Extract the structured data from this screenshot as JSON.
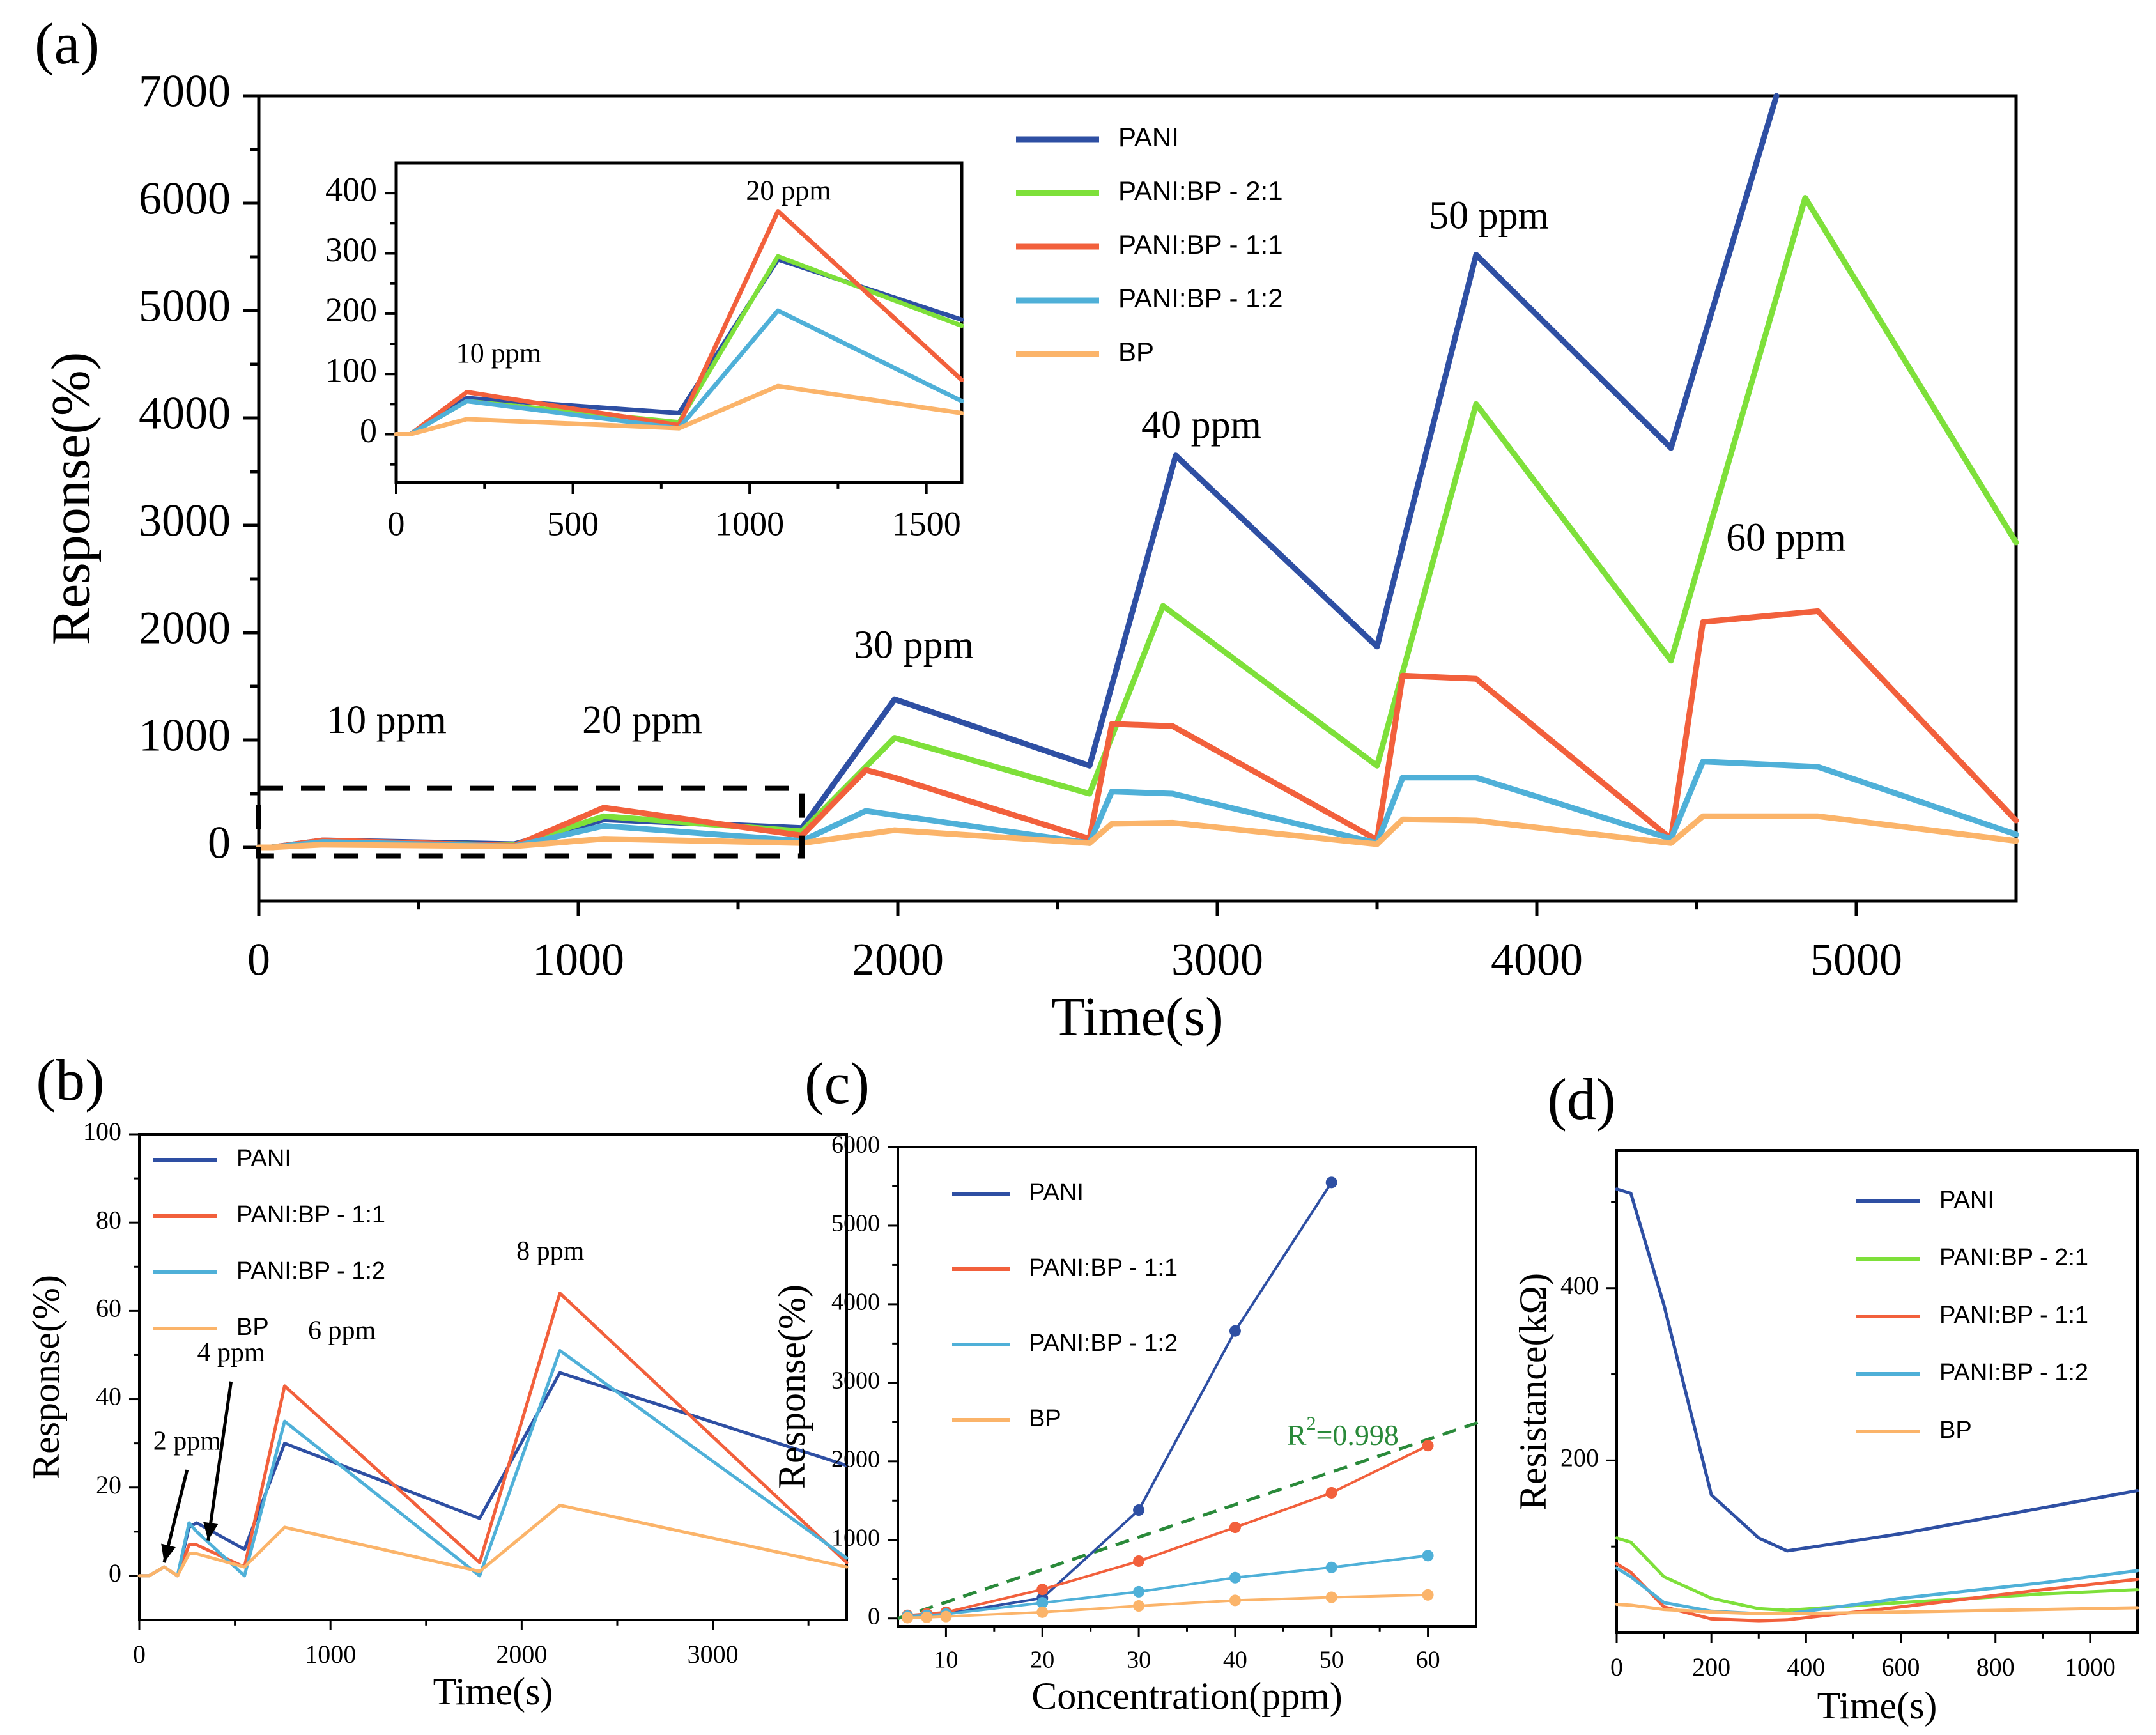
{
  "colors": {
    "PANI": "#2e4fa3",
    "PANI:BP - 2:1": "#7ee03a",
    "PANI:BP - 1:1": "#f2603c",
    "PANI:BP - 1:2": "#4fb0d8",
    "BP": "#fbb46a",
    "fit": "#2a8a3a"
  },
  "chart_data": [
    {
      "id": "a",
      "panel_label": "(a)",
      "type": "line",
      "xlabel": "Time(s)",
      "ylabel": "Response(%)",
      "xlim": [
        0,
        5500
      ],
      "ylim": [
        -500,
        7000
      ],
      "xticks": [
        0,
        1000,
        2000,
        3000,
        4000,
        5000
      ],
      "yticks": [
        0,
        1000,
        2000,
        3000,
        4000,
        5000,
        6000,
        7000
      ],
      "legend": [
        "PANI",
        "PANI:BP - 2:1",
        "PANI:BP - 1:1",
        "PANI:BP - 1:2",
        "BP"
      ],
      "legend_position": "top-center",
      "annotations": [
        {
          "text": "10 ppm",
          "x": 400,
          "y": 1150
        },
        {
          "text": "20 ppm",
          "x": 1200,
          "y": 1150
        },
        {
          "text": "30 ppm",
          "x": 2050,
          "y": 1850
        },
        {
          "text": "40 ppm",
          "x": 2950,
          "y": 3900
        },
        {
          "text": "50 ppm",
          "x": 3850,
          "y": 5850
        },
        {
          "text": "60 ppm",
          "x": 4780,
          "y": 2850
        }
      ],
      "series": [
        {
          "name": "PANI",
          "x": [
            0,
            40,
            200,
            800,
            1080,
            1700,
            1990,
            2600,
            2870,
            3500,
            3810,
            4420,
            4750
          ],
          "y": [
            0,
            0,
            65,
            30,
            260,
            180,
            1380,
            760,
            3650,
            1870,
            5520,
            3720,
            7000
          ]
        },
        {
          "name": "PANI:BP - 2:1",
          "x": [
            0,
            40,
            200,
            800,
            1080,
            1700,
            1990,
            2600,
            2830,
            3500,
            3810,
            4420,
            4840,
            5500
          ],
          "y": [
            0,
            0,
            55,
            20,
            290,
            150,
            1020,
            500,
            2250,
            760,
            4130,
            1740,
            6050,
            2840
          ]
        },
        {
          "name": "PANI:BP - 1:1",
          "x": [
            0,
            40,
            200,
            800,
            1080,
            1700,
            1900,
            1990,
            2600,
            2670,
            2860,
            3500,
            3580,
            3810,
            4420,
            4520,
            4880,
            5500
          ],
          "y": [
            0,
            0,
            65,
            15,
            370,
            110,
            720,
            650,
            80,
            1150,
            1130,
            70,
            1600,
            1570,
            80,
            2100,
            2200,
            250
          ]
        },
        {
          "name": "PANI:BP - 1:2",
          "x": [
            0,
            40,
            200,
            800,
            1080,
            1700,
            1900,
            1990,
            2600,
            2670,
            2860,
            3500,
            3580,
            3810,
            4420,
            4520,
            4880,
            5500
          ],
          "y": [
            0,
            0,
            50,
            10,
            200,
            60,
            340,
            300,
            40,
            520,
            500,
            40,
            650,
            650,
            80,
            800,
            750,
            120
          ]
        },
        {
          "name": "BP",
          "x": [
            0,
            40,
            200,
            800,
            1080,
            1700,
            1990,
            2600,
            2670,
            2860,
            3500,
            3580,
            3810,
            4420,
            4520,
            4880,
            5500
          ],
          "y": [
            0,
            0,
            25,
            10,
            80,
            40,
            160,
            40,
            220,
            230,
            30,
            260,
            250,
            40,
            290,
            290,
            60
          ]
        }
      ],
      "dashed_box": {
        "x": [
          0,
          1700
        ],
        "y": [
          -80,
          550
        ]
      }
    },
    {
      "id": "a-inset",
      "type": "line",
      "xlim": [
        0,
        1600
      ],
      "ylim": [
        -80,
        450
      ],
      "xticks": [
        0,
        500,
        1000,
        1500
      ],
      "yticks": [
        0,
        100,
        200,
        300,
        400
      ],
      "annotations": [
        {
          "text": "10 ppm",
          "x": 290,
          "y": 130
        },
        {
          "text": "20 ppm",
          "x": 1110,
          "y": 400
        }
      ],
      "series": [
        {
          "name": "PANI",
          "x": [
            0,
            40,
            200,
            800,
            1080,
            1600
          ],
          "y": [
            0,
            0,
            60,
            35,
            290,
            190
          ]
        },
        {
          "name": "PANI:BP - 2:1",
          "x": [
            0,
            40,
            200,
            800,
            1080,
            1600
          ],
          "y": [
            0,
            0,
            55,
            20,
            295,
            180
          ]
        },
        {
          "name": "PANI:BP - 1:1",
          "x": [
            0,
            40,
            200,
            800,
            1080,
            1600
          ],
          "y": [
            0,
            0,
            70,
            15,
            370,
            90
          ]
        },
        {
          "name": "PANI:BP - 1:2",
          "x": [
            0,
            40,
            200,
            800,
            1080,
            1600
          ],
          "y": [
            0,
            0,
            55,
            10,
            205,
            55
          ]
        },
        {
          "name": "BP",
          "x": [
            0,
            40,
            200,
            800,
            1080,
            1600
          ],
          "y": [
            0,
            0,
            25,
            10,
            80,
            35
          ]
        }
      ]
    },
    {
      "id": "b",
      "panel_label": "(b)",
      "type": "line",
      "xlabel": "Time(s)",
      "ylabel": "Response(%)",
      "xlim": [
        0,
        3700
      ],
      "ylim": [
        -10,
        100
      ],
      "xticks": [
        0,
        1000,
        2000,
        3000
      ],
      "yticks": [
        0,
        20,
        40,
        60,
        80,
        100
      ],
      "legend": [
        "PANI",
        "PANI:BP - 1:1",
        "PANI:BP - 1:2",
        "BP"
      ],
      "legend_position": "top-left",
      "annotations": [
        {
          "text": "2 ppm",
          "x": 250,
          "y": 30
        },
        {
          "text": "4 ppm",
          "x": 480,
          "y": 50
        },
        {
          "text": "6 ppm",
          "x": 1060,
          "y": 55
        },
        {
          "text": "8 ppm",
          "x": 2150,
          "y": 73
        }
      ],
      "series": [
        {
          "name": "PANI",
          "x": [
            0,
            50,
            130,
            200,
            260,
            300,
            550,
            760,
            1780,
            2200,
            3700
          ],
          "y": [
            0,
            0,
            2,
            0,
            11,
            12,
            6,
            30,
            13,
            46,
            25
          ]
        },
        {
          "name": "PANI:BP - 1:1",
          "x": [
            0,
            50,
            130,
            200,
            260,
            300,
            550,
            760,
            1780,
            2200,
            3700
          ],
          "y": [
            0,
            0,
            2,
            0,
            7,
            7,
            2,
            43,
            3,
            64,
            3
          ]
        },
        {
          "name": "PANI:BP - 1:2",
          "x": [
            0,
            50,
            130,
            200,
            260,
            300,
            550,
            760,
            1780,
            2200,
            3700
          ],
          "y": [
            0,
            0,
            2,
            0,
            12,
            10,
            0,
            35,
            0,
            51,
            4
          ]
        },
        {
          "name": "BP",
          "x": [
            0,
            50,
            130,
            200,
            260,
            300,
            550,
            760,
            1780,
            2200,
            3700
          ],
          "y": [
            0,
            0,
            2,
            0,
            5,
            5,
            2,
            11,
            1,
            16,
            2
          ]
        }
      ]
    },
    {
      "id": "c",
      "panel_label": "(c)",
      "type": "scatter",
      "xlabel": "Concentration(ppm)",
      "ylabel": "Response(%)",
      "xlim": [
        5,
        65
      ],
      "ylim": [
        -100,
        6000
      ],
      "xticks": [
        10,
        20,
        30,
        40,
        50,
        60
      ],
      "yticks": [
        0,
        1000,
        2000,
        3000,
        4000,
        5000,
        6000
      ],
      "legend": [
        "PANI",
        "PANI:BP - 1:1",
        "PANI:BP - 1:2",
        "BP"
      ],
      "legend_position": "top-left",
      "annotations": [
        {
          "text": "R",
          "sup": "2",
          "rest": "=0.998",
          "x": 50,
          "y": 2300
        }
      ],
      "fit": {
        "x": [
          5,
          65
        ],
        "y": [
          0,
          2500
        ]
      },
      "series": [
        {
          "name": "PANI",
          "x": [
            6,
            8,
            10,
            20,
            30,
            40,
            50
          ],
          "y": [
            30,
            45,
            60,
            260,
            1380,
            3660,
            5550
          ]
        },
        {
          "name": "PANI:BP - 1:1",
          "x": [
            6,
            8,
            10,
            20,
            30,
            40,
            50,
            60
          ],
          "y": [
            40,
            60,
            80,
            370,
            730,
            1160,
            1600,
            2200
          ]
        },
        {
          "name": "PANI:BP - 1:2",
          "x": [
            6,
            8,
            10,
            20,
            30,
            40,
            50,
            60
          ],
          "y": [
            30,
            40,
            55,
            200,
            340,
            520,
            650,
            800
          ]
        },
        {
          "name": "BP",
          "x": [
            6,
            8,
            10,
            20,
            30,
            40,
            50,
            60
          ],
          "y": [
            10,
            15,
            25,
            80,
            160,
            230,
            270,
            300
          ]
        }
      ]
    },
    {
      "id": "d",
      "panel_label": "(d)",
      "type": "line",
      "xlabel": "Time(s)",
      "ylabel": "Resistance(kΩ)",
      "xlim": [
        0,
        1100
      ],
      "ylim": [
        0,
        560
      ],
      "xticks": [
        0,
        200,
        400,
        600,
        800,
        1000
      ],
      "yticks": [
        200,
        400
      ],
      "legend": [
        "PANI",
        "PANI:BP - 2:1",
        "PANI:BP - 1:1",
        "PANI:BP - 1:2",
        "BP"
      ],
      "legend_position": "top-right",
      "series": [
        {
          "name": "PANI",
          "x": [
            0,
            30,
            100,
            200,
            300,
            360,
            600,
            900,
            1100
          ],
          "y": [
            515,
            510,
            380,
            160,
            110,
            95,
            115,
            145,
            165
          ]
        },
        {
          "name": "PANI:BP - 2:1",
          "x": [
            0,
            30,
            100,
            200,
            300,
            360,
            600,
            900,
            1100
          ],
          "y": [
            110,
            105,
            65,
            40,
            28,
            26,
            35,
            45,
            50
          ]
        },
        {
          "name": "PANI:BP - 1:1",
          "x": [
            0,
            30,
            100,
            200,
            300,
            360,
            600,
            900,
            1100
          ],
          "y": [
            80,
            70,
            30,
            16,
            14,
            15,
            30,
            50,
            62
          ]
        },
        {
          "name": "PANI:BP - 1:2",
          "x": [
            0,
            30,
            100,
            200,
            300,
            360,
            600,
            900,
            1100
          ],
          "y": [
            75,
            65,
            35,
            25,
            22,
            22,
            40,
            58,
            72
          ]
        },
        {
          "name": "BP",
          "x": [
            0,
            30,
            100,
            200,
            300,
            360,
            600,
            900,
            1100
          ],
          "y": [
            33,
            32,
            27,
            24,
            22,
            22,
            24,
            27,
            29
          ]
        }
      ]
    }
  ]
}
